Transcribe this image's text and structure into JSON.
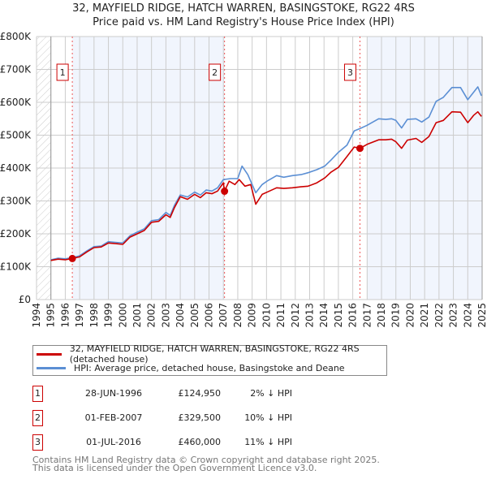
{
  "chart_data": {
    "type": "line",
    "title": "32, MAYFIELD RIDGE, HATCH WARREN, BASINGSTOKE, RG22 4RS",
    "subtitle": "Price paid vs. HM Land Registry's House Price Index (HPI)",
    "xlim": [
      1994,
      2025
    ],
    "ylim": [
      0,
      800000
    ],
    "grid": true,
    "x_ticks": [
      "1994",
      "1995",
      "1996",
      "1997",
      "1998",
      "1999",
      "2000",
      "2001",
      "2002",
      "2003",
      "2004",
      "2005",
      "2006",
      "2007",
      "2008",
      "2009",
      "2010",
      "2011",
      "2012",
      "2013",
      "2014",
      "2015",
      "2016",
      "2017",
      "2018",
      "2019",
      "2020",
      "2021",
      "2022",
      "2023",
      "2024",
      "2025"
    ],
    "y_ticks": [
      {
        "v": 0,
        "label": "£0"
      },
      {
        "v": 100000,
        "label": "£100K"
      },
      {
        "v": 200000,
        "label": "£200K"
      },
      {
        "v": 300000,
        "label": "£300K"
      },
      {
        "v": 400000,
        "label": "£400K"
      },
      {
        "v": 500000,
        "label": "£500K"
      },
      {
        "v": 600000,
        "label": "£600K"
      },
      {
        "v": 700000,
        "label": "£700K"
      },
      {
        "v": 800000,
        "label": "£800K"
      }
    ],
    "shaded_ranges": [
      [
        1996.49,
        2007.08
      ],
      [
        2017.0,
        2025.0
      ]
    ],
    "series": [
      {
        "name": "32, MAYFIELD RIDGE, HATCH WARREN, BASINGSTOKE, RG22 4RS (detached house)",
        "color": "#cc0000",
        "x": [
          1995.0,
          1995.5,
          1996.0,
          1996.49,
          1997.0,
          1997.5,
          1998.0,
          1998.5,
          1999.0,
          1999.5,
          2000.0,
          2000.5,
          2001.0,
          2001.5,
          2002.0,
          2002.5,
          2003.0,
          2003.3,
          2003.6,
          2004.0,
          2004.5,
          2005.0,
          2005.4,
          2005.8,
          2006.2,
          2006.6,
          2007.0,
          2007.08,
          2007.4,
          2007.8,
          2008.1,
          2008.5,
          2008.9,
          2009.25,
          2009.7,
          2010.1,
          2010.7,
          2011.2,
          2011.8,
          2012.4,
          2012.9,
          2013.5,
          2014.05,
          2014.5,
          2015.0,
          2015.6,
          2016.1,
          2016.5,
          2017.0,
          2017.8,
          2018.3,
          2018.7,
          2019.0,
          2019.4,
          2019.8,
          2020.4,
          2020.8,
          2021.3,
          2021.8,
          2022.3,
          2022.9,
          2023.5,
          2024.0,
          2024.4,
          2024.7,
          2024.95
        ],
        "values": [
          119000,
          123000,
          121000,
          124950,
          130000,
          145000,
          158000,
          160000,
          172000,
          170000,
          168000,
          190000,
          200000,
          210000,
          235000,
          238000,
          258000,
          250000,
          280000,
          313000,
          305000,
          320000,
          310000,
          325000,
          322000,
          330000,
          355000,
          329500,
          360000,
          350000,
          365000,
          345000,
          350000,
          290000,
          320000,
          328000,
          340000,
          338000,
          340000,
          343000,
          345000,
          355000,
          370000,
          388000,
          402000,
          435000,
          464000,
          460000,
          472000,
          486000,
          486000,
          488000,
          480000,
          460000,
          485000,
          490000,
          478000,
          496000,
          538000,
          545000,
          571000,
          570000,
          538000,
          560000,
          571000,
          557000
        ]
      },
      {
        "name": "HPI: Average price, detached house, Basingstoke and Deane",
        "color": "#5b8fd4",
        "x": [
          1995.0,
          1995.5,
          1996.0,
          1996.49,
          1997.0,
          1997.5,
          1998.0,
          1998.5,
          1999.0,
          1999.5,
          2000.0,
          2000.5,
          2001.0,
          2001.5,
          2002.0,
          2002.5,
          2003.0,
          2003.3,
          2003.6,
          2004.0,
          2004.5,
          2005.0,
          2005.4,
          2005.8,
          2006.2,
          2006.6,
          2007.0,
          2007.5,
          2008.0,
          2008.3,
          2008.7,
          2009.25,
          2009.7,
          2010.1,
          2010.7,
          2011.2,
          2011.8,
          2012.4,
          2012.9,
          2013.5,
          2014.05,
          2014.5,
          2015.0,
          2015.6,
          2016.1,
          2016.5,
          2017.0,
          2017.8,
          2018.3,
          2018.7,
          2019.0,
          2019.4,
          2019.8,
          2020.4,
          2020.8,
          2021.3,
          2021.8,
          2022.3,
          2022.9,
          2023.5,
          2024.0,
          2024.4,
          2024.7,
          2024.95
        ],
        "values": [
          121000,
          126000,
          124000,
          127500,
          133000,
          148000,
          161000,
          163000,
          176000,
          174000,
          172000,
          194000,
          205000,
          215000,
          240000,
          243000,
          265000,
          256000,
          287000,
          318000,
          312000,
          327000,
          318000,
          333000,
          330000,
          340000,
          365000,
          368000,
          368000,
          406000,
          380000,
          325000,
          350000,
          362000,
          377000,
          372000,
          377000,
          380000,
          386000,
          395000,
          406000,
          425000,
          448000,
          470000,
          513000,
          520000,
          530000,
          550000,
          548000,
          550000,
          545000,
          522000,
          548000,
          550000,
          540000,
          555000,
          603000,
          615000,
          645000,
          645000,
          608000,
          630000,
          647000,
          620000
        ]
      }
    ],
    "sales": [
      {
        "num": "1",
        "x": 1996.49,
        "value": 124950,
        "date": "28-JUN-1996",
        "price": "£124,950",
        "hpi": "2% ↓ HPI"
      },
      {
        "num": "2",
        "x": 2007.08,
        "value": 329500,
        "date": "01-FEB-2007",
        "price": "£329,500",
        "hpi": "10% ↓ HPI"
      },
      {
        "num": "3",
        "x": 2016.5,
        "value": 460000,
        "date": "01-JUL-2016",
        "price": "£460,000",
        "hpi": "11% ↓ HPI"
      }
    ],
    "legend_position": "below"
  },
  "footer": {
    "line1": "Contains HM Land Registry data © Crown copyright and database right 2025.",
    "line2": "This data is licensed under the Open Government Licence v3.0."
  }
}
